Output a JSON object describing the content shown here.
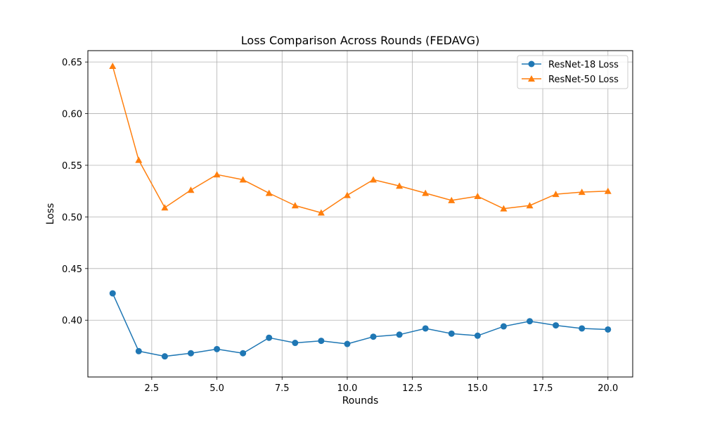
{
  "chart_data": {
    "type": "line",
    "title": "Loss Comparison Across Rounds (FEDAVG)",
    "xlabel": "Rounds",
    "ylabel": "Loss",
    "x": [
      1,
      2,
      3,
      4,
      5,
      6,
      7,
      8,
      9,
      10,
      11,
      12,
      13,
      14,
      15,
      16,
      17,
      18,
      19,
      20
    ],
    "xlim": [
      0.05,
      20.95
    ],
    "ylim": [
      0.345,
      0.661
    ],
    "xticks": [
      2.5,
      5.0,
      7.5,
      10.0,
      12.5,
      15.0,
      17.5,
      20.0
    ],
    "xtick_labels": [
      "2.5",
      "5.0",
      "7.5",
      "10.0",
      "12.5",
      "15.0",
      "17.5",
      "20.0"
    ],
    "yticks": [
      0.4,
      0.45,
      0.5,
      0.55,
      0.6,
      0.65
    ],
    "ytick_labels": [
      "0.40",
      "0.45",
      "0.50",
      "0.55",
      "0.60",
      "0.65"
    ],
    "grid": true,
    "legend_position": "top-right",
    "series": [
      {
        "name": "ResNet-18 Loss",
        "color": "#1f77b4",
        "marker": "circle",
        "values": [
          0.426,
          0.37,
          0.365,
          0.368,
          0.372,
          0.368,
          0.383,
          0.378,
          0.38,
          0.377,
          0.384,
          0.386,
          0.392,
          0.387,
          0.385,
          0.394,
          0.399,
          0.395,
          0.392,
          0.391
        ]
      },
      {
        "name": "ResNet-50 Loss",
        "color": "#ff7f0e",
        "marker": "triangle",
        "values": [
          0.646,
          0.555,
          0.509,
          0.526,
          0.541,
          0.536,
          0.523,
          0.511,
          0.504,
          0.521,
          0.536,
          0.53,
          0.523,
          0.516,
          0.52,
          0.508,
          0.511,
          0.522,
          0.524,
          0.525
        ]
      }
    ]
  }
}
